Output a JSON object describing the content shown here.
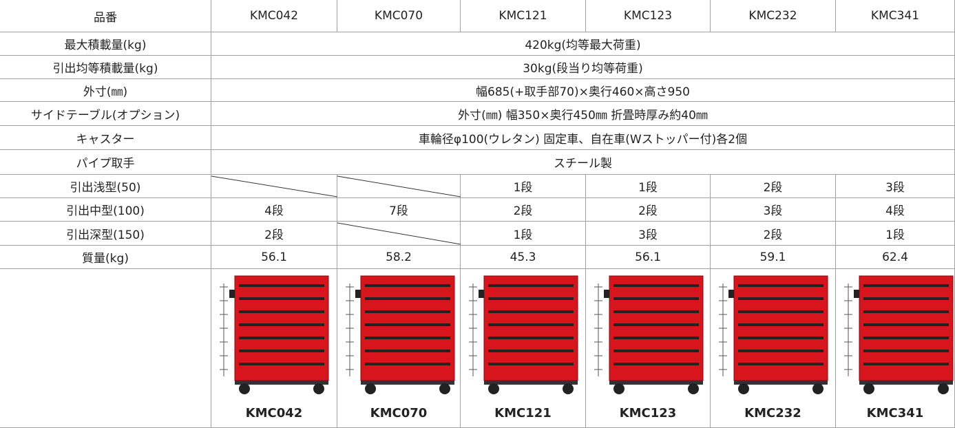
{
  "table": {
    "header": [
      "品番",
      "KMC042",
      "KMC070",
      "KMC121",
      "KMC123",
      "KMC232",
      "KMC341"
    ],
    "rows": [
      [
        "最大積載量(kg)",
        "420kg(均等最大荷重)"
      ],
      [
        "引出均等積載量(kg)",
        "30kg(段当り均等荷重)"
      ],
      [
        "外寸(㎜)",
        "幅685(+取手部70)×奥行460×高さ950"
      ],
      [
        "サイドテーブル(オプション)",
        "外寸(㎜) 幅350×奥行450㎜ 折畳時厚み約40㎜"
      ],
      [
        "キャスター",
        "車輪径φ100(ウレタン) 固定車、自在車(Wストッパー付)各2個"
      ],
      [
        "パイプ取手",
        "スチール製"
      ],
      [
        "引出浅型(50)",
        null,
        null,
        "1段",
        "1段",
        "2段",
        "3段"
      ],
      [
        "引出中型(100)",
        "4段",
        "7段",
        "2段",
        "2段",
        "3段",
        "4段"
      ],
      [
        "引出深型(150)",
        "2段",
        null,
        "1段",
        "3段",
        "2段",
        "1段"
      ],
      [
        "質量(kg)",
        "56.1",
        "58.2",
        "45.3",
        "56.1",
        "59.1",
        "62.4"
      ]
    ],
    "image_captions": [
      "KMC042",
      "KMC070",
      "KMC121",
      "KMC123",
      "KMC232",
      "KMC341"
    ]
  }
}
